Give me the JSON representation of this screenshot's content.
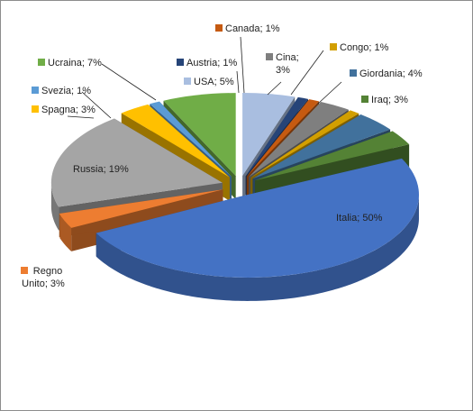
{
  "chart_data": {
    "type": "pie",
    "style": "3d-exploded",
    "title": "",
    "slices": [
      {
        "name": "Italia",
        "label": "Italia; 50%",
        "value": 50,
        "color": "#4472C4"
      },
      {
        "name": "Regno Unito",
        "label_lines": [
          "Regno",
          "Unito; 3%"
        ],
        "value": 3,
        "color": "#ED7D31"
      },
      {
        "name": "Russia",
        "label": "Russia; 19%",
        "value": 19,
        "color": "#A5A5A5"
      },
      {
        "name": "Spagna",
        "label": "Spagna; 3%",
        "value": 3,
        "color": "#FFC000"
      },
      {
        "name": "Svezia",
        "label": "Svezia; 1%",
        "value": 1,
        "color": "#5B9BD5"
      },
      {
        "name": "Ucraina",
        "label": "Ucraina; 7%",
        "value": 7,
        "color": "#70AD47"
      },
      {
        "name": "USA",
        "label": "USA; 5%",
        "value": 5,
        "color": "#A9BEE0"
      },
      {
        "name": "Austria",
        "label": "Austria; 1%",
        "value": 1,
        "color": "#264478"
      },
      {
        "name": "Canada",
        "label": "Canada; 1%",
        "value": 1,
        "color": "#C55A11"
      },
      {
        "name": "Cina",
        "label_lines": [
          "Cina;",
          "3%"
        ],
        "value": 3,
        "color": "#7F7F7F"
      },
      {
        "name": "Congo",
        "label": "Congo; 1%",
        "value": 1,
        "color": "#D29F00"
      },
      {
        "name": "Giordania",
        "label": "Giordania; 4%",
        "value": 4,
        "color": "#41719C"
      },
      {
        "name": "Iraq",
        "label": "Iraq; 3%",
        "value": 3,
        "color": "#548235"
      }
    ]
  }
}
